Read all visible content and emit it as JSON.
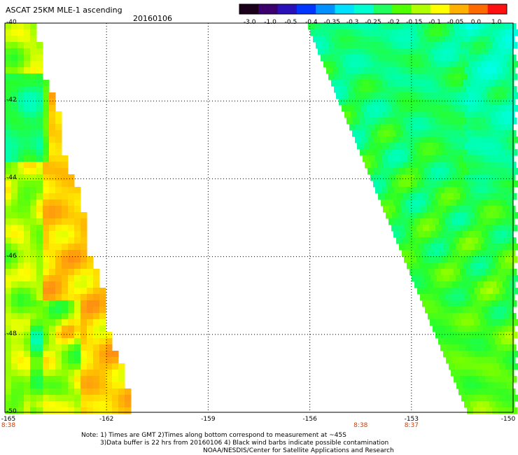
{
  "header": {
    "title": "ASCAT 25KM MLE-1 ascending",
    "date": "20160106"
  },
  "colorbar": {
    "labels": [
      "-3.0",
      "-1.0",
      "-0.5",
      "-0.4",
      "-0.35",
      "-0.3",
      "-0.25",
      "-0.2",
      "-0.15",
      "-0.1",
      "-0.05",
      "0.0",
      "1.0"
    ],
    "colors": [
      "#1a0018",
      "#3c006e",
      "#2a10b8",
      "#0036ff",
      "#0090ff",
      "#00e0ff",
      "#00ffd0",
      "#20ff60",
      "#50ff00",
      "#b0ff00",
      "#ffff00",
      "#ffb000",
      "#ff6a00",
      "#ff1010"
    ]
  },
  "map": {
    "lat_labels": [
      "-40",
      "-42",
      "-44",
      "-46",
      "-48",
      "-50"
    ],
    "lon_labels": [
      "-165",
      "-162",
      "-159",
      "-156",
      "-153",
      "-150"
    ],
    "time_labels": [
      {
        "text": "8:38",
        "lon": -165
      },
      {
        "text": "8:38",
        "lon": -154.5
      },
      {
        "text": "8:37",
        "lon": -153
      }
    ]
  },
  "notes": {
    "line1": "Note: 1) Times are GMT 2)Times along bottom correspond to measurement at ~45S",
    "line2": "3)Data buffer is 22 hrs from 20160106 4) Black wind barbs indicate possible contamination",
    "line3": "NOAA/NESDIS/Center for Satellite Applications and Research"
  }
}
